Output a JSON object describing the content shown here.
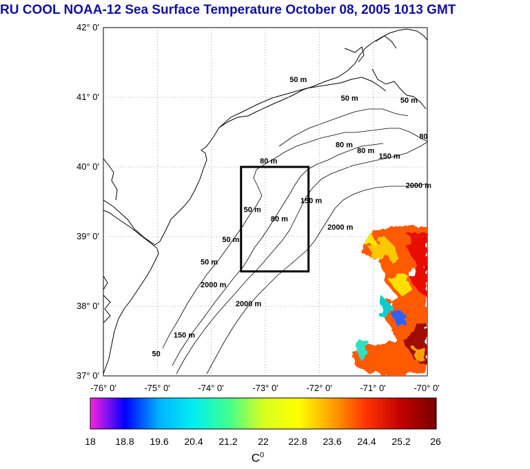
{
  "title": "RU COOL  NOAA-12 Sea Surface Temperature October 08, 2005 1013 GMT",
  "map": {
    "lat_labels": [
      "42° 0'",
      "41° 0'",
      "40° 0'",
      "39° 0'",
      "38° 0'",
      "37° 0'"
    ],
    "lon_labels": [
      "-76° 0'",
      "-75° 0'",
      "-74° 0'",
      "-73° 0'",
      "-72° 0'",
      "-71° 0'",
      "-70° 0'"
    ],
    "lat_range": [
      37,
      42
    ],
    "lon_range": [
      -76,
      -70
    ],
    "grid": "dotted",
    "highlight_box": {
      "lon": [
        -73.45,
        -72.2
      ],
      "lat": [
        38.5,
        40.0
      ]
    },
    "contour_labels": [
      {
        "text": "50 m",
        "lon": -72.55,
        "lat": 41.22
      },
      {
        "text": "50 m",
        "lon": -71.6,
        "lat": 40.95
      },
      {
        "text": "50 m",
        "lon": -70.5,
        "lat": 40.92
      },
      {
        "text": "80",
        "lon": -70.15,
        "lat": 40.4
      },
      {
        "text": "80 m",
        "lon": -71.7,
        "lat": 40.28
      },
      {
        "text": "80 m",
        "lon": -71.3,
        "lat": 40.2
      },
      {
        "text": "150 m",
        "lon": -70.9,
        "lat": 40.12
      },
      {
        "text": "80 m",
        "lon": -73.1,
        "lat": 40.05
      },
      {
        "text": "50 m",
        "lon": -73.4,
        "lat": 39.35
      },
      {
        "text": "80 m",
        "lon": -72.9,
        "lat": 39.22
      },
      {
        "text": "150 m",
        "lon": -72.35,
        "lat": 39.48
      },
      {
        "text": "2000 m",
        "lon": -70.4,
        "lat": 39.7
      },
      {
        "text": "2000 m",
        "lon": -71.85,
        "lat": 39.1
      },
      {
        "text": "50 m",
        "lon": -73.8,
        "lat": 38.92
      },
      {
        "text": "50 m",
        "lon": -74.2,
        "lat": 38.6
      },
      {
        "text": "2000 m",
        "lon": -74.2,
        "lat": 38.27
      },
      {
        "text": "2000 m",
        "lon": -73.55,
        "lat": 38.0
      },
      {
        "text": "150 m",
        "lon": -74.7,
        "lat": 37.55
      },
      {
        "text": "50",
        "lon": -75.1,
        "lat": 37.28
      }
    ]
  },
  "colorbar": {
    "labels": [
      "18",
      "18.8",
      "19.6",
      "20.4",
      "21.2",
      "22",
      "22.8",
      "23.6",
      "24.4",
      "25.2",
      "26"
    ],
    "unit_base": "C",
    "unit_sup": "0",
    "stops": [
      "#ff22dd",
      "#0000ff",
      "#00b4ff",
      "#00f0f0",
      "#40ff90",
      "#d8ff20",
      "#ffff00",
      "#ffa000",
      "#ff3000",
      "#c00000",
      "#780000"
    ]
  }
}
